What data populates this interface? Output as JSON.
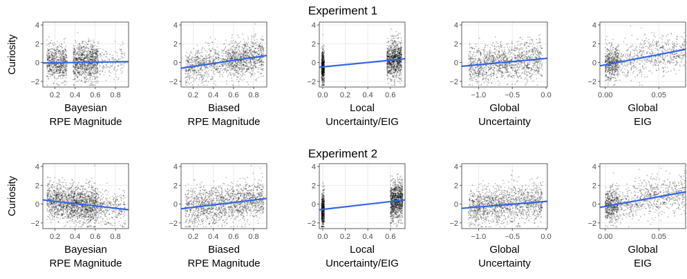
{
  "figure": {
    "rows": [
      {
        "title": "Experiment 1"
      },
      {
        "title": "Experiment 2"
      }
    ]
  },
  "colors": {
    "fit_line": "#3366e6",
    "points": "#000000",
    "grid": "#ebebeb",
    "panel_border": "#333333"
  },
  "chart_data": [
    {
      "type": "scatter",
      "row": "Experiment 1",
      "xlabel": [
        "Bayesian",
        "RPE Magnitude"
      ],
      "ylabel": "Curiosity",
      "xlim": [
        0.08,
        0.93
      ],
      "ylim": [
        -2.6,
        4.3
      ],
      "xticks": [
        0.2,
        0.4,
        0.6,
        0.8
      ],
      "xtick_labels": [
        "0.2",
        "0.4",
        "0.6",
        "0.8"
      ],
      "yticks": [
        -2,
        0,
        2,
        4
      ],
      "ytick_labels": [
        "-2",
        "0",
        "2",
        "4"
      ],
      "grid": true,
      "point_clusters": [
        [
          0.12,
          0.32,
          650,
          0.9
        ],
        [
          0.38,
          0.63,
          950,
          1.0
        ],
        [
          0.64,
          0.9,
          140,
          0.8
        ]
      ],
      "fit_line": {
        "x": [
          0.08,
          0.93
        ],
        "y": [
          -0.05,
          0.1
        ]
      }
    },
    {
      "type": "scatter",
      "row": "Experiment 1",
      "xlabel": [
        "Biased",
        "RPE Magnitude"
      ],
      "xlim": [
        0.08,
        0.93
      ],
      "ylim": [
        -2.6,
        4.3
      ],
      "xticks": [
        0.2,
        0.4,
        0.6,
        0.8
      ],
      "xtick_labels": [
        "0.2",
        "0.4",
        "0.6",
        "0.8"
      ],
      "yticks": [
        -2,
        0,
        2,
        4
      ],
      "ytick_labels": [
        "-2",
        "0",
        "2",
        "4"
      ],
      "grid": true,
      "point_clusters": [
        [
          0.12,
          0.56,
          650,
          0.9
        ],
        [
          0.56,
          0.7,
          380,
          1.0
        ],
        [
          0.7,
          0.9,
          450,
          1.0
        ]
      ],
      "fit_line": {
        "x": [
          0.08,
          0.93
        ],
        "y": [
          -0.6,
          0.75
        ]
      }
    },
    {
      "type": "scatter",
      "row": "Experiment 1",
      "xlabel": [
        "Local",
        "Uncertainty/EIG"
      ],
      "xlim": [
        -0.03,
        0.73
      ],
      "ylim": [
        -2.6,
        4.3
      ],
      "xticks": [
        0.0,
        0.2,
        0.4,
        0.6
      ],
      "xtick_labels": [
        "0.0",
        "0.2",
        "0.4",
        "0.6"
      ],
      "yticks": [
        -2,
        0,
        2,
        4
      ],
      "ytick_labels": [
        "-2",
        "0",
        "2",
        "4"
      ],
      "grid": true,
      "point_clusters": [
        [
          -0.01,
          0.015,
          500,
          0.9
        ],
        [
          0.57,
          0.7,
          950,
          1.0
        ]
      ],
      "fit_line": {
        "x": [
          -0.03,
          0.73
        ],
        "y": [
          -0.5,
          0.4
        ]
      }
    },
    {
      "type": "scatter",
      "row": "Experiment 1",
      "xlabel": [
        "Global",
        "Uncertainty"
      ],
      "xlim": [
        -1.25,
        0.02
      ],
      "ylim": [
        -2.6,
        4.3
      ],
      "xticks": [
        -1.0,
        -0.5,
        0.0
      ],
      "xtick_labels": [
        "-1.0",
        "-0.5",
        "0.0"
      ],
      "yticks": [
        -2,
        0,
        2,
        4
      ],
      "ytick_labels": [
        "-2",
        "0",
        "2",
        "4"
      ],
      "grid": true,
      "point_clusters": [
        [
          -1.15,
          -0.05,
          1300,
          1.0
        ]
      ],
      "fit_line": {
        "x": [
          -1.25,
          0.02
        ],
        "y": [
          -0.4,
          0.45
        ]
      }
    },
    {
      "type": "scatter",
      "row": "Experiment 1",
      "xlabel": [
        "Global",
        "EIG"
      ],
      "xlim": [
        -0.005,
        0.075
      ],
      "ylim": [
        -2.6,
        4.3
      ],
      "xticks": [
        0.0,
        0.05
      ],
      "xtick_labels": [
        "0.00",
        "0.05"
      ],
      "yticks": [
        -2,
        0,
        2,
        4
      ],
      "ytick_labels": [
        "-2",
        "0",
        "2",
        "4"
      ],
      "grid": true,
      "point_clusters": [
        [
          0.0,
          0.012,
          500,
          0.9
        ],
        [
          0.012,
          0.075,
          600,
          1.0
        ]
      ],
      "fit_line": {
        "x": [
          -0.005,
          0.075
        ],
        "y": [
          -0.35,
          1.4
        ]
      }
    },
    {
      "type": "scatter",
      "row": "Experiment 2",
      "xlabel": [
        "Bayesian",
        "RPE Magnitude"
      ],
      "ylabel": "Curiosity",
      "xlim": [
        0.08,
        0.93
      ],
      "ylim": [
        -2.6,
        4.3
      ],
      "xticks": [
        0.2,
        0.4,
        0.6,
        0.8
      ],
      "xtick_labels": [
        "0.2",
        "0.4",
        "0.6",
        "0.8"
      ],
      "yticks": [
        -2,
        0,
        2,
        4
      ],
      "ytick_labels": [
        "-2",
        "0",
        "2",
        "4"
      ],
      "grid": true,
      "point_clusters": [
        [
          0.12,
          0.36,
          700,
          0.9
        ],
        [
          0.36,
          0.62,
          1000,
          1.0
        ],
        [
          0.62,
          0.9,
          300,
          0.9
        ]
      ],
      "fit_line": {
        "x": [
          0.08,
          0.93
        ],
        "y": [
          0.45,
          -0.6
        ]
      }
    },
    {
      "type": "scatter",
      "row": "Experiment 2",
      "xlabel": [
        "Biased",
        "RPE Magnitude"
      ],
      "xlim": [
        0.08,
        0.93
      ],
      "ylim": [
        -2.6,
        4.3
      ],
      "xticks": [
        0.2,
        0.4,
        0.6,
        0.8
      ],
      "xtick_labels": [
        "0.2",
        "0.4",
        "0.6",
        "0.8"
      ],
      "yticks": [
        -2,
        0,
        2,
        4
      ],
      "ytick_labels": [
        "-2",
        "0",
        "2",
        "4"
      ],
      "grid": true,
      "point_clusters": [
        [
          0.12,
          0.9,
          1500,
          1.0
        ]
      ],
      "fit_line": {
        "x": [
          0.08,
          0.93
        ],
        "y": [
          -0.5,
          0.6
        ]
      }
    },
    {
      "type": "scatter",
      "row": "Experiment 2",
      "xlabel": [
        "Local",
        "Uncertainty/EIG"
      ],
      "xlim": [
        -0.03,
        0.73
      ],
      "ylim": [
        -2.6,
        4.3
      ],
      "xticks": [
        0.0,
        0.2,
        0.4,
        0.6
      ],
      "xtick_labels": [
        "0.0",
        "0.2",
        "0.4",
        "0.6"
      ],
      "yticks": [
        -2,
        0,
        2,
        4
      ],
      "ytick_labels": [
        "-2",
        "0",
        "2",
        "4"
      ],
      "grid": true,
      "point_clusters": [
        [
          -0.01,
          0.015,
          500,
          0.9
        ],
        [
          0.6,
          0.71,
          1000,
          1.0
        ]
      ],
      "fit_line": {
        "x": [
          -0.03,
          0.73
        ],
        "y": [
          -0.6,
          0.45
        ]
      }
    },
    {
      "type": "scatter",
      "row": "Experiment 2",
      "xlabel": [
        "Global",
        "Uncertainty"
      ],
      "xlim": [
        -1.25,
        0.02
      ],
      "ylim": [
        -2.6,
        4.3
      ],
      "xticks": [
        -1.0,
        -0.5,
        0.0
      ],
      "xtick_labels": [
        "-1.0",
        "-0.5",
        "0.0"
      ],
      "yticks": [
        -2,
        0,
        2,
        4
      ],
      "ytick_labels": [
        "-2",
        "0",
        "2",
        "4"
      ],
      "grid": true,
      "point_clusters": [
        [
          -1.15,
          -0.05,
          1400,
          1.0
        ]
      ],
      "fit_line": {
        "x": [
          -1.25,
          0.02
        ],
        "y": [
          -0.45,
          0.3
        ]
      }
    },
    {
      "type": "scatter",
      "row": "Experiment 2",
      "xlabel": [
        "Global",
        "EIG"
      ],
      "xlim": [
        -0.005,
        0.075
      ],
      "ylim": [
        -2.6,
        4.3
      ],
      "xticks": [
        0.0,
        0.05
      ],
      "xtick_labels": [
        "0.00",
        "0.05"
      ],
      "yticks": [
        -2,
        0,
        2,
        4
      ],
      "ytick_labels": [
        "-2",
        "0",
        "2",
        "4"
      ],
      "grid": true,
      "point_clusters": [
        [
          0.0,
          0.012,
          500,
          0.9
        ],
        [
          0.012,
          0.075,
          700,
          1.0
        ]
      ],
      "fit_line": {
        "x": [
          -0.005,
          0.075
        ],
        "y": [
          -0.35,
          1.3
        ]
      }
    }
  ]
}
